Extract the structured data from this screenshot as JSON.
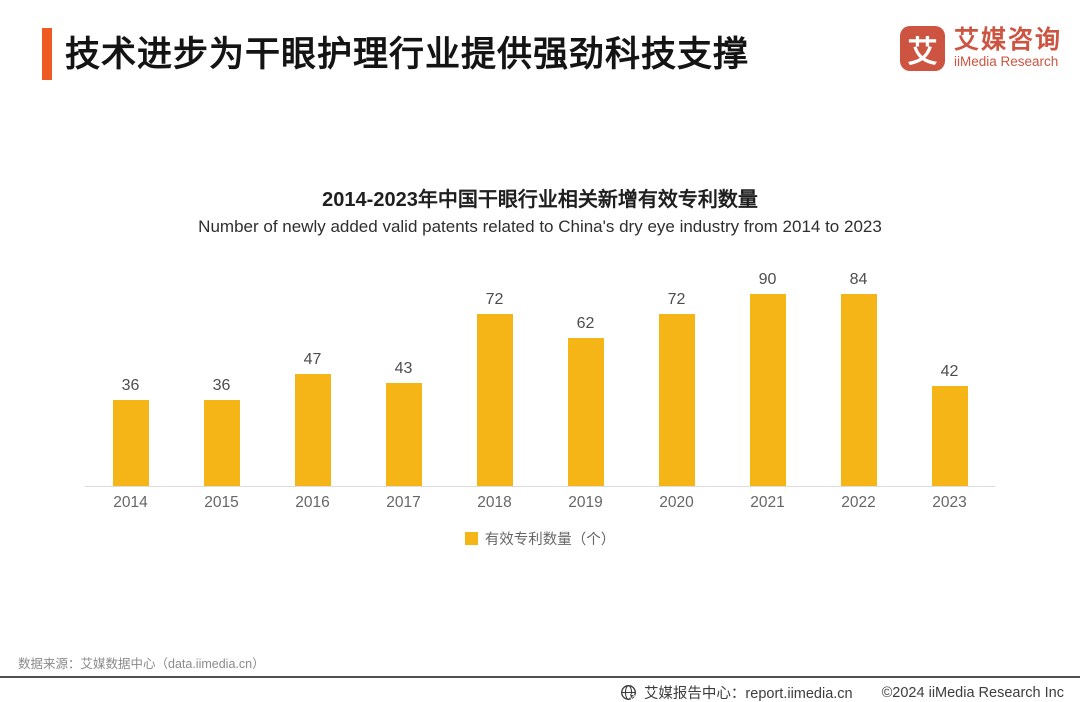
{
  "header": {
    "title": "技术进步为干眼护理行业提供强劲科技支撑"
  },
  "logo": {
    "mark_glyph": "艾",
    "brand_cn": "艾媒咨询",
    "brand_en": "iiMedia Research",
    "brand_color": "#CD5440"
  },
  "chart_data": {
    "type": "bar",
    "title": "2014-2023年中国干眼行业相关新增有效专利数量",
    "subtitle": "Number of newly added valid patents related to China's dry eye industry from 2014 to 2023",
    "categories": [
      "2014",
      "2015",
      "2016",
      "2017",
      "2018",
      "2019",
      "2020",
      "2021",
      "2022",
      "2023"
    ],
    "values": [
      36,
      36,
      47,
      43,
      72,
      62,
      72,
      90,
      84,
      42
    ],
    "series_name": "有效专利数量（个）",
    "legend": [
      {
        "label": "有效专利数量（个）",
        "color": "#F5B517"
      }
    ],
    "bar_color": "#F5B517",
    "ylim": [
      0,
      90
    ],
    "grid": false,
    "data_labels": true,
    "legend_position": "bottom",
    "xlabel": "",
    "ylabel": ""
  },
  "footer": {
    "source": "数据来源：艾媒数据中心（data.iimedia.cn）",
    "report_center": "艾媒报告中心：report.iimedia.cn",
    "copyright": "©2024  iiMedia Research Inc"
  },
  "colors": {
    "accent": "#ED5B22",
    "bar": "#F5B517",
    "brand": "#CD5440"
  }
}
